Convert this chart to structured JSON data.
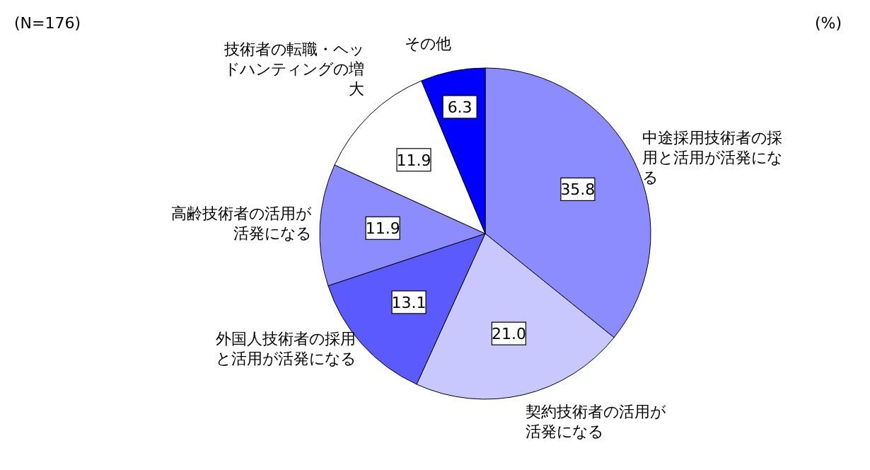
{
  "chart_data": {
    "type": "pie",
    "categories": [
      "中途採用技術者の採用と活用が活発になる",
      "契約技術者の活用が活発になる",
      "外国人技術者の採用と活用が活発になる",
      "高齢技術者の活用が活発になる",
      "技術者の転職・ヘッドハンティングの増大",
      "その他"
    ],
    "values": [
      35.8,
      21.0,
      13.1,
      11.9,
      11.9,
      6.3
    ],
    "colors": [
      "#8c8cff",
      "#c8c8ff",
      "#5a5aff",
      "#8c8cff",
      "#ffffff",
      "#0000ff"
    ],
    "value_labels": [
      "35.8",
      "21.0",
      "13.1",
      "11.9",
      "11.9",
      "6.3"
    ],
    "annotations": [
      "(N=176)",
      "(%)"
    ]
  }
}
